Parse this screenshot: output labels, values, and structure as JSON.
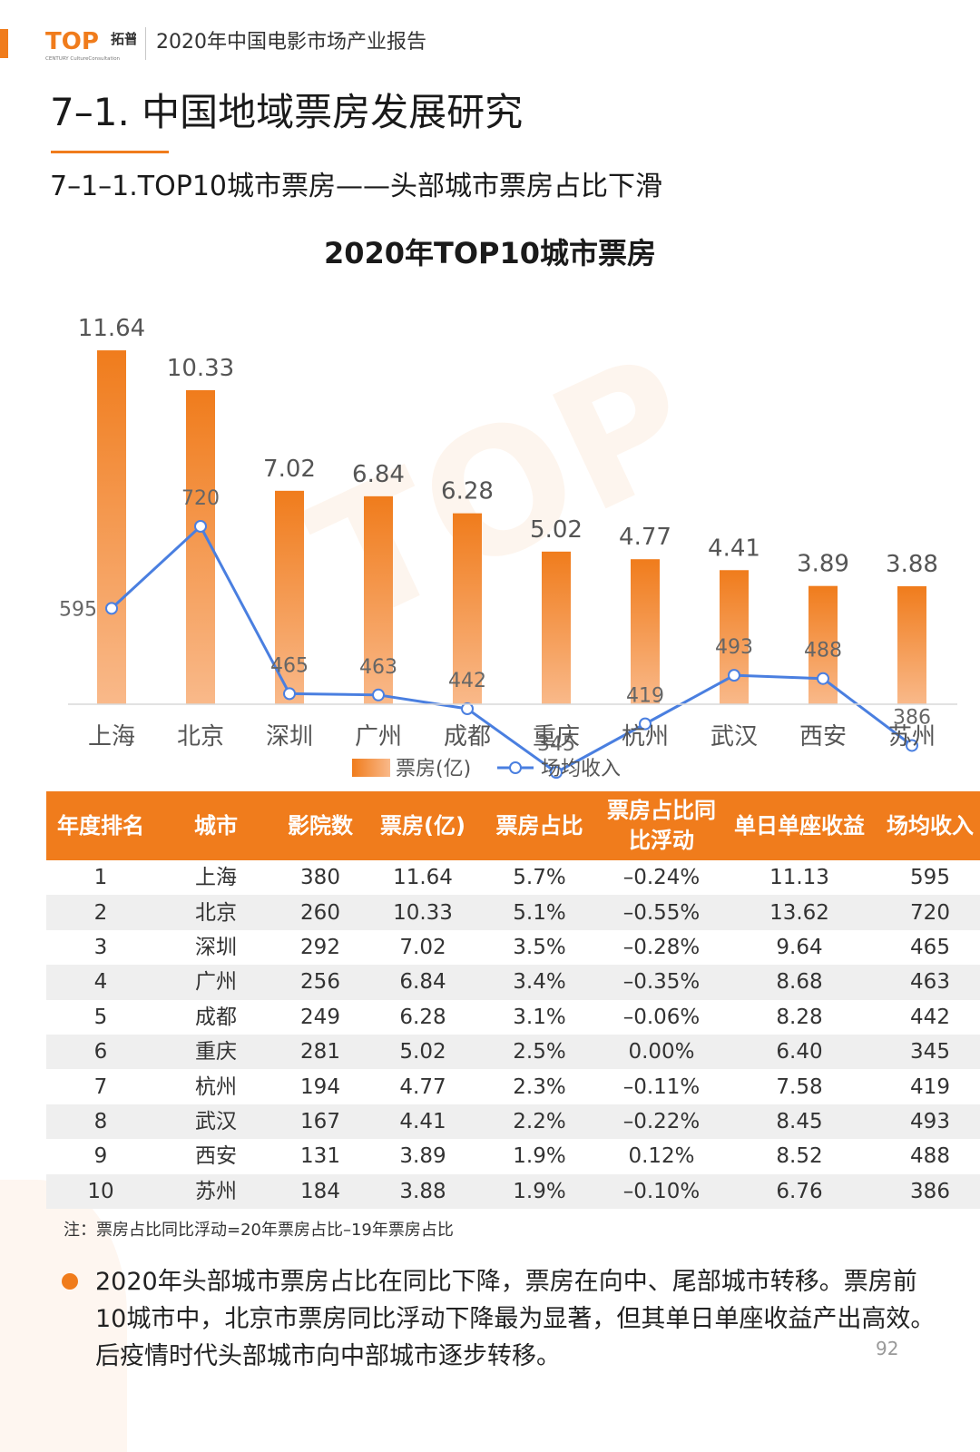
{
  "header": {
    "logo_text": "TOP",
    "logo_cn": "拓普",
    "logo_sub": "CENTURY  CultureConsultation",
    "report_title": "2020年中国电影市场产业报告"
  },
  "section": {
    "title": "7–1. 中国地域票房发展研究",
    "subtitle": "7–1–1.TOP10城市票房——头部城市票房占比下滑"
  },
  "colors": {
    "accent": "#f07c1c",
    "bar_top": "#f07c1c",
    "bar_bottom": "#f9b98a",
    "line": "#4a7fe0",
    "positive": "#e02020",
    "negative": "#3bb04a"
  },
  "chart_data": {
    "type": "bar",
    "title": "2020年TOP10城市票房",
    "categories": [
      "上海",
      "北京",
      "深圳",
      "广州",
      "成都",
      "重庆",
      "杭州",
      "武汉",
      "西安",
      "苏州"
    ],
    "series": [
      {
        "name": "票房(亿)",
        "type": "bar",
        "values": [
          11.64,
          10.33,
          7.02,
          6.84,
          6.28,
          5.02,
          4.77,
          4.41,
          3.89,
          3.88
        ]
      },
      {
        "name": "场均收入",
        "type": "line",
        "values": [
          595,
          720,
          465,
          463,
          442,
          345,
          419,
          493,
          488,
          386
        ]
      }
    ],
    "legend_position": "bottom",
    "grid": false
  },
  "table": {
    "headers": [
      "年度排名",
      "城市",
      "影院数",
      "票房(亿)",
      "票房占比",
      "票房占比同比浮动",
      "单日单座收益",
      "场均收入"
    ],
    "rows": [
      [
        "1",
        "上海",
        "380",
        "11.64",
        "5.7%",
        "–0.24%",
        "11.13",
        "595"
      ],
      [
        "2",
        "北京",
        "260",
        "10.33",
        "5.1%",
        "–0.55%",
        "13.62",
        "720"
      ],
      [
        "3",
        "深圳",
        "292",
        "7.02",
        "3.5%",
        "–0.28%",
        "9.64",
        "465"
      ],
      [
        "4",
        "广州",
        "256",
        "6.84",
        "3.4%",
        "–0.35%",
        "8.68",
        "463"
      ],
      [
        "5",
        "成都",
        "249",
        "6.28",
        "3.1%",
        "–0.06%",
        "8.28",
        "442"
      ],
      [
        "6",
        "重庆",
        "281",
        "5.02",
        "2.5%",
        "0.00%",
        "6.40",
        "345"
      ],
      [
        "7",
        "杭州",
        "194",
        "4.77",
        "2.3%",
        "–0.11%",
        "7.58",
        "419"
      ],
      [
        "8",
        "武汉",
        "167",
        "4.41",
        "2.2%",
        "–0.22%",
        "8.45",
        "493"
      ],
      [
        "9",
        "西安",
        "131",
        "3.89",
        "1.9%",
        "0.12%",
        "8.52",
        "488"
      ],
      [
        "10",
        "苏州",
        "184",
        "3.88",
        "1.9%",
        "–0.10%",
        "6.76",
        "386"
      ]
    ]
  },
  "note": "注：票房占比同比浮动=20年票房占比–19年票房占比",
  "summary": "2020年头部城市票房占比在同比下降，票房在向中、尾部城市转移。票房前10城市中，北京市票房同比浮动下降最为显著，但其单日单座收益产出高效。后疫情时代头部城市向中部城市逐步转移。",
  "page_number": "92"
}
